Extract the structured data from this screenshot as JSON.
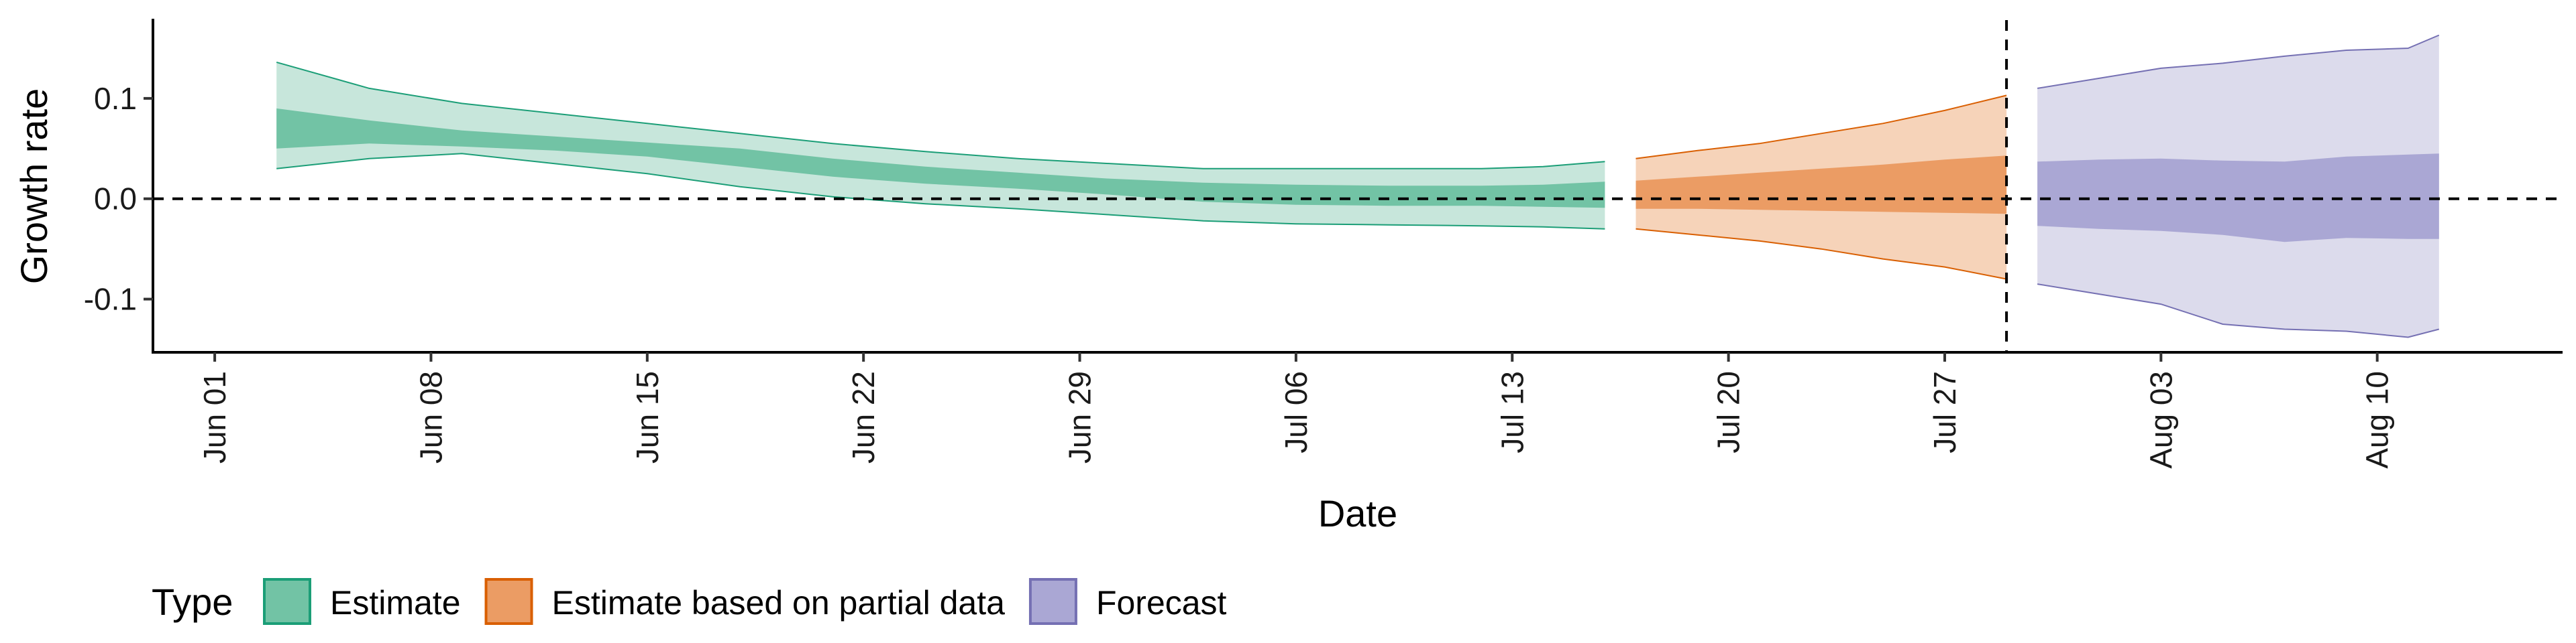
{
  "chart_data": {
    "type": "area",
    "xlabel": "Date",
    "ylabel": "Growth rate",
    "x_ticks": [
      "Jun 01",
      "Jun 08",
      "Jun 15",
      "Jun 22",
      "Jun 29",
      "Jul 06",
      "Jul 13",
      "Jul 20",
      "Jul 27",
      "Aug 03",
      "Aug 10"
    ],
    "x_range": [
      "2020-05-30",
      "2020-08-16"
    ],
    "y_ticks": [
      "0.1",
      "0.0",
      "-0.1"
    ],
    "y_range": [
      -0.153,
      0.178
    ],
    "reference_lines": {
      "horizontal_y": 0.0,
      "vertical_date": "2020-07-29"
    },
    "legend": {
      "title": "Type",
      "position": "bottom"
    },
    "series": [
      {
        "name": "Estimate",
        "color": "#1b9e77",
        "inner_fill": "#72c3a5",
        "outer_fill": "#c7e6db",
        "points": [
          {
            "date": "2020-06-03",
            "outer": [
              0.03,
              0.136
            ],
            "inner": [
              0.05,
              0.09
            ]
          },
          {
            "date": "2020-06-06",
            "outer": [
              0.04,
              0.11
            ],
            "inner": [
              0.055,
              0.078
            ]
          },
          {
            "date": "2020-06-09",
            "outer": [
              0.045,
              0.095
            ],
            "inner": [
              0.052,
              0.068
            ]
          },
          {
            "date": "2020-06-12",
            "outer": [
              0.035,
              0.085
            ],
            "inner": [
              0.048,
              0.062
            ]
          },
          {
            "date": "2020-06-15",
            "outer": [
              0.025,
              0.075
            ],
            "inner": [
              0.042,
              0.056
            ]
          },
          {
            "date": "2020-06-18",
            "outer": [
              0.012,
              0.065
            ],
            "inner": [
              0.032,
              0.05
            ]
          },
          {
            "date": "2020-06-21",
            "outer": [
              0.002,
              0.055
            ],
            "inner": [
              0.022,
              0.04
            ]
          },
          {
            "date": "2020-06-24",
            "outer": [
              -0.005,
              0.047
            ],
            "inner": [
              0.015,
              0.032
            ]
          },
          {
            "date": "2020-06-27",
            "outer": [
              -0.01,
              0.04
            ],
            "inner": [
              0.01,
              0.026
            ]
          },
          {
            "date": "2020-06-30",
            "outer": [
              -0.016,
              0.035
            ],
            "inner": [
              0.004,
              0.02
            ]
          },
          {
            "date": "2020-07-03",
            "outer": [
              -0.022,
              0.03
            ],
            "inner": [
              -0.003,
              0.016
            ]
          },
          {
            "date": "2020-07-06",
            "outer": [
              -0.025,
              0.03
            ],
            "inner": [
              -0.006,
              0.014
            ]
          },
          {
            "date": "2020-07-09",
            "outer": [
              -0.026,
              0.03
            ],
            "inner": [
              -0.007,
              0.013
            ]
          },
          {
            "date": "2020-07-12",
            "outer": [
              -0.027,
              0.03
            ],
            "inner": [
              -0.007,
              0.013
            ]
          },
          {
            "date": "2020-07-14",
            "outer": [
              -0.028,
              0.032
            ],
            "inner": [
              -0.008,
              0.014
            ]
          },
          {
            "date": "2020-07-16",
            "outer": [
              -0.03,
              0.037
            ],
            "inner": [
              -0.009,
              0.017
            ]
          }
        ]
      },
      {
        "name": "Estimate based on partial data",
        "color": "#d95f02",
        "inner_fill": "#eb9c64",
        "outer_fill": "#f6d3b9",
        "points": [
          {
            "date": "2020-07-17",
            "outer": [
              -0.03,
              0.04
            ],
            "inner": [
              -0.01,
              0.018
            ]
          },
          {
            "date": "2020-07-19",
            "outer": [
              -0.036,
              0.048
            ],
            "inner": [
              -0.01,
              0.022
            ]
          },
          {
            "date": "2020-07-21",
            "outer": [
              -0.042,
              0.055
            ],
            "inner": [
              -0.011,
              0.026
            ]
          },
          {
            "date": "2020-07-23",
            "outer": [
              -0.05,
              0.065
            ],
            "inner": [
              -0.012,
              0.03
            ]
          },
          {
            "date": "2020-07-25",
            "outer": [
              -0.06,
              0.075
            ],
            "inner": [
              -0.013,
              0.034
            ]
          },
          {
            "date": "2020-07-27",
            "outer": [
              -0.068,
              0.088
            ],
            "inner": [
              -0.014,
              0.039
            ]
          },
          {
            "date": "2020-07-29",
            "outer": [
              -0.08,
              0.103
            ],
            "inner": [
              -0.015,
              0.043
            ]
          }
        ]
      },
      {
        "name": "Forecast",
        "color": "#7570b3",
        "inner_fill": "#aaa7d4",
        "outer_fill": "#dcdbec",
        "points": [
          {
            "date": "2020-07-30",
            "outer": [
              -0.085,
              0.11
            ],
            "inner": [
              -0.027,
              0.037
            ]
          },
          {
            "date": "2020-08-01",
            "outer": [
              -0.095,
              0.12
            ],
            "inner": [
              -0.03,
              0.039
            ]
          },
          {
            "date": "2020-08-03",
            "outer": [
              -0.105,
              0.13
            ],
            "inner": [
              -0.032,
              0.04
            ]
          },
          {
            "date": "2020-08-05",
            "outer": [
              -0.125,
              0.135
            ],
            "inner": [
              -0.036,
              0.038
            ]
          },
          {
            "date": "2020-08-07",
            "outer": [
              -0.13,
              0.142
            ],
            "inner": [
              -0.043,
              0.037
            ]
          },
          {
            "date": "2020-08-09",
            "outer": [
              -0.132,
              0.148
            ],
            "inner": [
              -0.039,
              0.042
            ]
          },
          {
            "date": "2020-08-11",
            "outer": [
              -0.138,
              0.15
            ],
            "inner": [
              -0.04,
              0.044
            ]
          },
          {
            "date": "2020-08-12",
            "outer": [
              -0.13,
              0.163
            ],
            "inner": [
              -0.04,
              0.045
            ]
          }
        ]
      }
    ]
  }
}
